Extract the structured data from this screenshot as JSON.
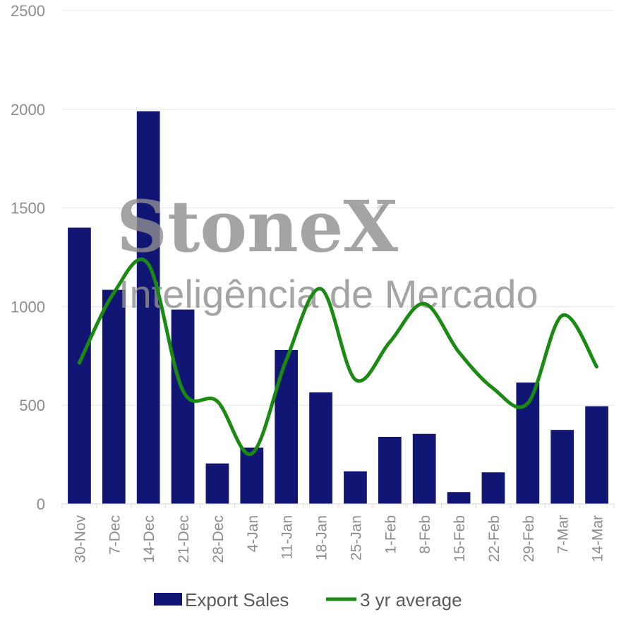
{
  "chart_data": {
    "type": "bar",
    "categories": [
      "30-Nov",
      "7-Dec",
      "14-Dec",
      "21-Dec",
      "28-Dec",
      "4-Jan",
      "11-Jan",
      "18-Jan",
      "25-Jan",
      "1-Feb",
      "8-Feb",
      "15-Feb",
      "22-Feb",
      "29-Feb",
      "7-Mar",
      "14-Mar"
    ],
    "series": [
      {
        "name": "Export Sales",
        "type": "bar",
        "color": "#111675",
        "values": [
          1400,
          1085,
          1990,
          985,
          205,
          285,
          780,
          565,
          165,
          340,
          355,
          60,
          160,
          615,
          375,
          495
        ]
      },
      {
        "name": "3 yr average",
        "type": "line",
        "smooth": true,
        "color": "#1a8a12",
        "values": [
          715,
          1070,
          1215,
          575,
          520,
          255,
          730,
          1090,
          630,
          820,
          1015,
          770,
          585,
          510,
          955,
          695
        ]
      }
    ],
    "ylim": [
      0,
      2500
    ],
    "yticks": [
      "0",
      "500",
      "1000",
      "1500",
      "2000",
      "2500"
    ],
    "grid": true,
    "legend": "bottom-center"
  },
  "watermark": {
    "brand": "StoneX",
    "registered": "®",
    "subtitle": "Inteligência de Mercado"
  }
}
